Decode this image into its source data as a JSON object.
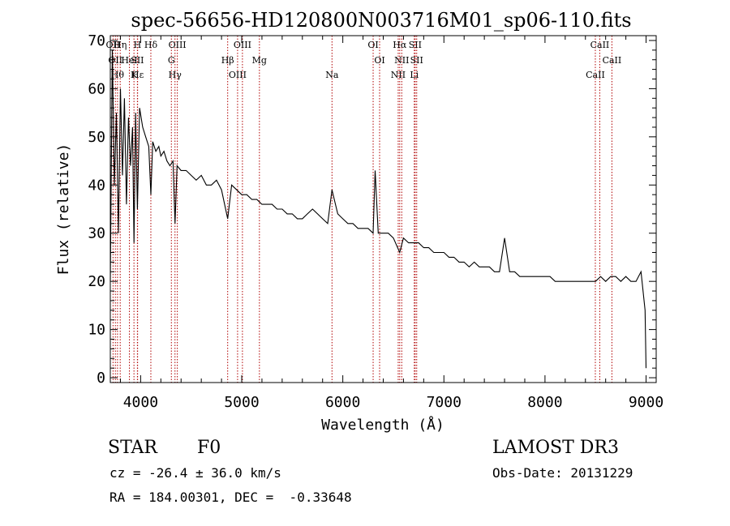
{
  "chart_data": {
    "type": "line",
    "title": "spec-56656-HD120800N003716M01_sp06-110.fits",
    "xlabel": "Wavelength (Å)",
    "ylabel": "Flux (relative)",
    "xlim": [
      3700,
      9100
    ],
    "ylim": [
      -1,
      71
    ],
    "xticks": [
      4000,
      5000,
      6000,
      7000,
      8000,
      9000
    ],
    "yticks": [
      0,
      10,
      20,
      30,
      40,
      50,
      60,
      70
    ],
    "grid": false,
    "series": [
      {
        "x": [
          3700,
          3720,
          3740,
          3760,
          3780,
          3800,
          3820,
          3840,
          3860,
          3880,
          3900,
          3920,
          3934,
          3950,
          3968,
          3990,
          4020,
          4050,
          4080,
          4101,
          4120,
          4150,
          4180,
          4200,
          4230,
          4260,
          4290,
          4320,
          4340,
          4360,
          4400,
          4450,
          4500,
          4550,
          4600,
          4650,
          4700,
          4750,
          4800,
          4861,
          4900,
          4950,
          5000,
          5050,
          5100,
          5150,
          5200,
          5250,
          5300,
          5350,
          5400,
          5450,
          5500,
          5550,
          5600,
          5650,
          5700,
          5750,
          5800,
          5850,
          5893,
          5950,
          6000,
          6050,
          6100,
          6150,
          6200,
          6250,
          6300,
          6320,
          6350,
          6400,
          6450,
          6500,
          6563,
          6600,
          6650,
          6700,
          6750,
          6800,
          6850,
          6900,
          6950,
          7000,
          7050,
          7100,
          7150,
          7200,
          7250,
          7300,
          7350,
          7400,
          7450,
          7500,
          7550,
          7600,
          7650,
          7700,
          7750,
          7800,
          7850,
          7900,
          7950,
          8000,
          8050,
          8100,
          8150,
          8200,
          8250,
          8300,
          8350,
          8400,
          8450,
          8500,
          8550,
          8600,
          8650,
          8700,
          8750,
          8800,
          8850,
          8900,
          8950,
          8990,
          9000
        ],
        "y": [
          20,
          68,
          40,
          55,
          30,
          60,
          42,
          58,
          36,
          54,
          44,
          52,
          28,
          55,
          35,
          56,
          52,
          50,
          48,
          38,
          49,
          47,
          48,
          46,
          47,
          45,
          44,
          45,
          32,
          44,
          43,
          43,
          42,
          41,
          42,
          40,
          40,
          41,
          39,
          33,
          40,
          39,
          38,
          38,
          37,
          37,
          36,
          36,
          36,
          35,
          35,
          34,
          34,
          33,
          33,
          34,
          35,
          34,
          33,
          32,
          39,
          34,
          33,
          32,
          32,
          31,
          31,
          31,
          30,
          43,
          30,
          30,
          30,
          29,
          26,
          29,
          28,
          28,
          28,
          27,
          27,
          26,
          26,
          26,
          25,
          25,
          24,
          24,
          23,
          24,
          23,
          23,
          23,
          22,
          22,
          29,
          22,
          22,
          21,
          21,
          21,
          21,
          21,
          21,
          21,
          20,
          20,
          20,
          20,
          20,
          20,
          20,
          20,
          20,
          21,
          20,
          21,
          21,
          20,
          21,
          20,
          20,
          22,
          14,
          2
        ]
      }
    ],
    "lines": [
      {
        "x": 3727,
        "labels": [
          "OII"
        ]
      },
      {
        "x": 3750,
        "labels": [
          "OII"
        ]
      },
      {
        "x": 3771,
        "labels": [
          "Hθ"
        ]
      },
      {
        "x": 3798,
        "labels": [
          "Hη"
        ]
      },
      {
        "x": 3889,
        "labels": [
          "HeI"
        ]
      },
      {
        "x": 3934,
        "labels": [
          "K"
        ]
      },
      {
        "x": 3968,
        "labels": [
          "H",
          "SII"
        ]
      },
      {
        "x": 3970,
        "labels": [
          "Hε"
        ]
      },
      {
        "x": 4101,
        "labels": [
          "Hδ"
        ]
      },
      {
        "x": 4304,
        "labels": [
          "G"
        ]
      },
      {
        "x": 4340,
        "labels": [
          "Hγ"
        ]
      },
      {
        "x": 4363,
        "labels": [
          "OIII"
        ]
      },
      {
        "x": 4861,
        "labels": [
          "Hβ"
        ]
      },
      {
        "x": 4959,
        "labels": [
          "OIII"
        ]
      },
      {
        "x": 5007,
        "labels": [
          "OIII"
        ]
      },
      {
        "x": 5175,
        "labels": [
          "Mg"
        ]
      },
      {
        "x": 5893,
        "labels": [
          "Na"
        ]
      },
      {
        "x": 6300,
        "labels": [
          "OI"
        ]
      },
      {
        "x": 6364,
        "labels": [
          "OI"
        ]
      },
      {
        "x": 6548,
        "labels": [
          "NII"
        ]
      },
      {
        "x": 6563,
        "labels": [
          "Hα"
        ]
      },
      {
        "x": 6583,
        "labels": [
          "NII"
        ]
      },
      {
        "x": 6707,
        "labels": [
          "Li"
        ]
      },
      {
        "x": 6716,
        "labels": [
          "SII"
        ]
      },
      {
        "x": 6731,
        "labels": [
          "SII"
        ]
      },
      {
        "x": 8498,
        "labels": [
          "CaII"
        ]
      },
      {
        "x": 8542,
        "labels": [
          "CaII"
        ]
      },
      {
        "x": 8662,
        "labels": [
          "CaII"
        ]
      }
    ]
  },
  "info": {
    "class": "STAR",
    "subclass": "F0",
    "survey": "LAMOST DR3",
    "cz": "cz = -26.4 ± 36.0 km/s",
    "obs_date": "Obs-Date: 20131229",
    "coords": "RA = 184.00301, DEC =  -0.33648"
  },
  "colors": {
    "spectrum": "#000000",
    "line_marker": "#b00000"
  }
}
